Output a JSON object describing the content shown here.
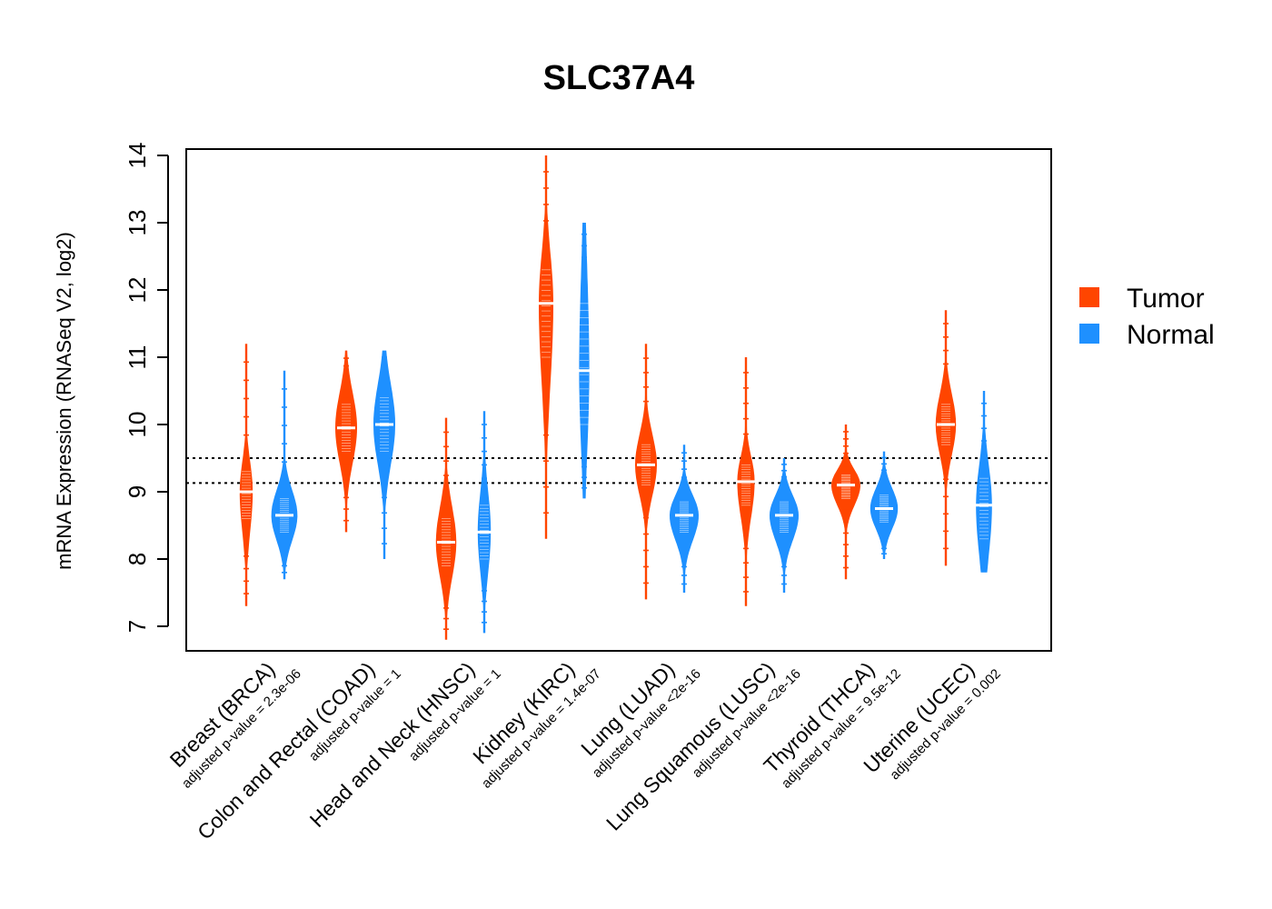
{
  "chart_data": {
    "type": "violin",
    "title": "SLC37A4",
    "ylabel": "mRNA Expression (RNASeq V2, log2)",
    "ylim": [
      6.6,
      14.1
    ],
    "yticks": [
      "7",
      "8",
      "9",
      "10",
      "11",
      "12",
      "13",
      "14"
    ],
    "reference_lines": [
      9.13,
      9.5
    ],
    "legend": {
      "position": "right",
      "items": [
        "Tumor",
        "Normal"
      ]
    },
    "colors": {
      "Tumor": "#FF4500",
      "Normal": "#1E90FF"
    },
    "categories": [
      {
        "label": "Breast (BRCA)",
        "pvalue": "adjusted p-value = 2.3e-06",
        "tumor": {
          "min": 7.3,
          "max": 11.2,
          "median": 9.0,
          "q1": 8.6,
          "q3": 9.3,
          "width": 0.45
        },
        "normal": {
          "min": 7.7,
          "max": 10.8,
          "median": 8.65,
          "q1": 8.4,
          "q3": 8.9,
          "width": 0.9
        }
      },
      {
        "label": "Colon and Rectal (COAD)",
        "pvalue": "adjusted p-value = 1",
        "tumor": {
          "min": 8.4,
          "max": 11.1,
          "median": 9.95,
          "q1": 9.6,
          "q3": 10.3,
          "width": 0.75
        },
        "normal": {
          "min": 8.0,
          "max": 11.1,
          "median": 10.0,
          "q1": 9.6,
          "q3": 10.4,
          "width": 0.75
        }
      },
      {
        "label": "Head and Neck (HNSC)",
        "pvalue": "adjusted p-value = 1",
        "tumor": {
          "min": 6.8,
          "max": 10.1,
          "median": 8.25,
          "q1": 7.9,
          "q3": 8.6,
          "width": 0.7
        },
        "normal": {
          "min": 6.9,
          "max": 10.2,
          "median": 8.4,
          "q1": 8.0,
          "q3": 8.8,
          "width": 0.45
        }
      },
      {
        "label": "Kidney (KIRC)",
        "pvalue": "adjusted p-value = 1.4e-07",
        "tumor": {
          "min": 8.3,
          "max": 14.0,
          "median": 11.8,
          "q1": 11.0,
          "q3": 12.3,
          "width": 0.5
        },
        "normal": {
          "min": 8.9,
          "max": 13.0,
          "median": 10.8,
          "q1": 10.0,
          "q3": 11.8,
          "width": 0.35
        }
      },
      {
        "label": "Lung (LUAD)",
        "pvalue": "adjusted p-value <2e-16",
        "tumor": {
          "min": 7.4,
          "max": 11.2,
          "median": 9.4,
          "q1": 9.1,
          "q3": 9.7,
          "width": 0.75
        },
        "normal": {
          "min": 7.5,
          "max": 9.7,
          "median": 8.65,
          "q1": 8.4,
          "q3": 8.85,
          "width": 1.0
        }
      },
      {
        "label": "Lung Squamous (LUSC)",
        "pvalue": "adjusted p-value <2e-16",
        "tumor": {
          "min": 7.3,
          "max": 11.0,
          "median": 9.15,
          "q1": 8.8,
          "q3": 9.4,
          "width": 0.6
        },
        "normal": {
          "min": 7.5,
          "max": 9.5,
          "median": 8.65,
          "q1": 8.4,
          "q3": 8.85,
          "width": 1.0
        }
      },
      {
        "label": "Thyroid (THCA)",
        "pvalue": "adjusted p-value = 9.5e-12",
        "tumor": {
          "min": 7.7,
          "max": 10.0,
          "median": 9.1,
          "q1": 8.9,
          "q3": 9.25,
          "width": 1.0
        },
        "normal": {
          "min": 8.0,
          "max": 9.6,
          "median": 8.75,
          "q1": 8.55,
          "q3": 8.95,
          "width": 0.95
        }
      },
      {
        "label": "Uterine (UCEC)",
        "pvalue": "adjusted p-value = 0.002",
        "tumor": {
          "min": 7.9,
          "max": 11.7,
          "median": 10.0,
          "q1": 9.7,
          "q3": 10.3,
          "width": 0.7
        },
        "normal": {
          "min": 7.8,
          "max": 10.5,
          "median": 8.8,
          "q1": 8.3,
          "q3": 9.2,
          "width": 0.55
        }
      }
    ]
  }
}
